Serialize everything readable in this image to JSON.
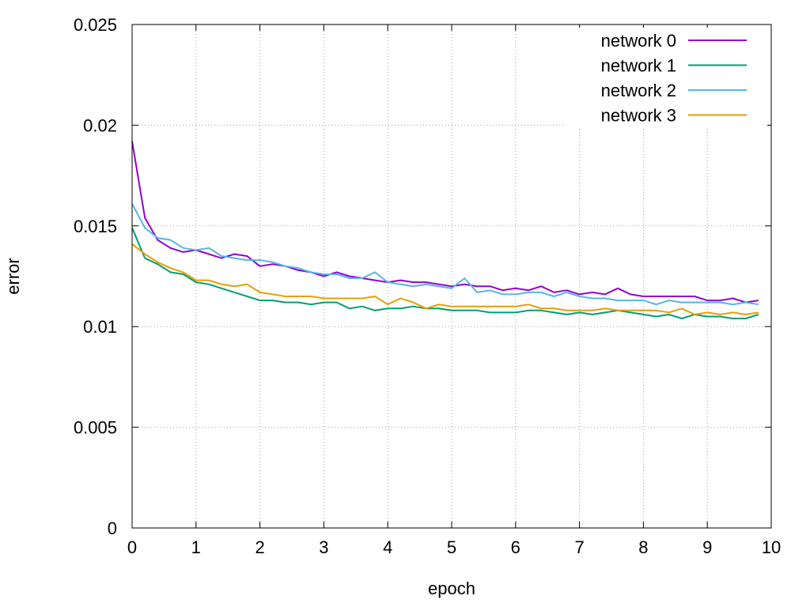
{
  "chart_data": {
    "type": "line",
    "title": "",
    "xlabel": "epoch",
    "ylabel": "error",
    "xlim": [
      0,
      10
    ],
    "ylim": [
      0,
      0.025
    ],
    "x_ticks": [
      "0",
      "1",
      "2",
      "3",
      "4",
      "5",
      "6",
      "7",
      "8",
      "9",
      "10"
    ],
    "x_tick_values": [
      0,
      1,
      2,
      3,
      4,
      5,
      6,
      7,
      8,
      9,
      10
    ],
    "y_ticks": [
      "0",
      "0.005",
      "0.01",
      "0.015",
      "0.02",
      "0.025"
    ],
    "y_tick_values": [
      0,
      0.005,
      0.01,
      0.015,
      0.02,
      0.025
    ],
    "grid": true,
    "legend_position": "top-right",
    "x": [
      0,
      0.2,
      0.4,
      0.6,
      0.8,
      1.0,
      1.2,
      1.4,
      1.6,
      1.8,
      2.0,
      2.2,
      2.4,
      2.6,
      2.8,
      3.0,
      3.2,
      3.4,
      3.6,
      3.8,
      4.0,
      4.2,
      4.4,
      4.6,
      4.8,
      5.0,
      5.2,
      5.4,
      5.6,
      5.8,
      6.0,
      6.2,
      6.4,
      6.6,
      6.8,
      7.0,
      7.2,
      7.4,
      7.6,
      7.8,
      8.0,
      8.2,
      8.4,
      8.6,
      8.8,
      9.0,
      9.2,
      9.4,
      9.6,
      9.8
    ],
    "series": [
      {
        "name": "network 0",
        "color": "#9400d3",
        "values": [
          0.0192,
          0.0154,
          0.0143,
          0.0139,
          0.0137,
          0.0138,
          0.0136,
          0.0134,
          0.0136,
          0.0135,
          0.013,
          0.0131,
          0.013,
          0.0128,
          0.0127,
          0.0125,
          0.0127,
          0.0125,
          0.0124,
          0.0123,
          0.0122,
          0.0123,
          0.0122,
          0.0122,
          0.0121,
          0.012,
          0.0121,
          0.012,
          0.012,
          0.0118,
          0.0119,
          0.0118,
          0.012,
          0.0117,
          0.0118,
          0.0116,
          0.0117,
          0.0116,
          0.0119,
          0.0116,
          0.0115,
          0.0115,
          0.0115,
          0.0115,
          0.0115,
          0.0113,
          0.0113,
          0.0114,
          0.0112,
          0.0113
        ]
      },
      {
        "name": "network 1",
        "color": "#009e73",
        "values": [
          0.0149,
          0.0134,
          0.0131,
          0.0127,
          0.0126,
          0.0122,
          0.0121,
          0.0119,
          0.0117,
          0.0115,
          0.0113,
          0.0113,
          0.0112,
          0.0112,
          0.0111,
          0.0112,
          0.0112,
          0.0109,
          0.011,
          0.0108,
          0.0109,
          0.0109,
          0.011,
          0.0109,
          0.0109,
          0.0108,
          0.0108,
          0.0108,
          0.0107,
          0.0107,
          0.0107,
          0.0108,
          0.0108,
          0.0107,
          0.0106,
          0.0107,
          0.0106,
          0.0107,
          0.0108,
          0.0107,
          0.0106,
          0.0105,
          0.0106,
          0.0104,
          0.0106,
          0.0105,
          0.0105,
          0.0104,
          0.0104,
          0.0106
        ]
      },
      {
        "name": "network 2",
        "color": "#56b4e9",
        "values": [
          0.0161,
          0.0149,
          0.0144,
          0.0143,
          0.0139,
          0.0138,
          0.0139,
          0.0135,
          0.0134,
          0.0133,
          0.0133,
          0.0132,
          0.013,
          0.0129,
          0.0127,
          0.0126,
          0.0126,
          0.0124,
          0.0124,
          0.0127,
          0.0122,
          0.0121,
          0.012,
          0.0121,
          0.012,
          0.0119,
          0.0124,
          0.0117,
          0.0118,
          0.0116,
          0.0116,
          0.0117,
          0.0117,
          0.0115,
          0.0117,
          0.0115,
          0.0114,
          0.0114,
          0.0113,
          0.0113,
          0.0113,
          0.0111,
          0.0113,
          0.0112,
          0.0112,
          0.0112,
          0.0112,
          0.0111,
          0.0112,
          0.0111
        ]
      },
      {
        "name": "network 3",
        "color": "#e69f00",
        "values": [
          0.0141,
          0.0136,
          0.0132,
          0.0129,
          0.0127,
          0.0123,
          0.0123,
          0.0121,
          0.012,
          0.0121,
          0.0117,
          0.0116,
          0.0115,
          0.0115,
          0.0115,
          0.0114,
          0.0114,
          0.0114,
          0.0114,
          0.0115,
          0.0111,
          0.0114,
          0.0112,
          0.0109,
          0.0111,
          0.011,
          0.011,
          0.011,
          0.011,
          0.011,
          0.011,
          0.0111,
          0.0109,
          0.0109,
          0.0108,
          0.0108,
          0.0108,
          0.0109,
          0.0108,
          0.0108,
          0.0108,
          0.0108,
          0.0107,
          0.0109,
          0.0106,
          0.0107,
          0.0106,
          0.0107,
          0.0106,
          0.0107
        ]
      }
    ]
  }
}
